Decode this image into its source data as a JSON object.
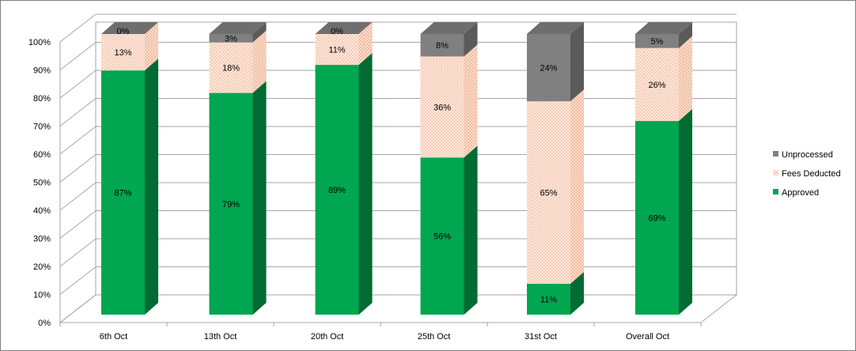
{
  "chart_data": {
    "type": "bar",
    "stacked": true,
    "three_d": true,
    "categories": [
      "6th Oct",
      "13th Oct",
      "20th Oct",
      "25th Oct",
      "31st Oct",
      "Overall Oct"
    ],
    "series": [
      {
        "name": "Approved",
        "values": [
          87,
          79,
          89,
          56,
          11,
          69
        ],
        "labels": [
          "87%",
          "79%",
          "89%",
          "56%",
          "11%",
          "69%"
        ],
        "color": "#00A650",
        "side_color": "#006B33",
        "top_color": "#00C060"
      },
      {
        "name": "Fees Deducted",
        "values": [
          13,
          18,
          11,
          36,
          65,
          26
        ],
        "labels": [
          "13%",
          "18%",
          "11%",
          "36%",
          "65%",
          "26%"
        ],
        "color": "#FCE8DC",
        "dot_color": "#F4A582",
        "side_color": "#F6CDB8",
        "top_color": "#FDF2EA"
      },
      {
        "name": "Unprocessed",
        "values": [
          0,
          3,
          0,
          8,
          24,
          5
        ],
        "labels": [
          "0%",
          "3%",
          "0%",
          "8%",
          "24%",
          "5%"
        ],
        "color": "#808080",
        "side_color": "#5A5A5A",
        "top_color": "#6E6E6E"
      }
    ],
    "yaxis": {
      "min": 0,
      "max": 100,
      "step": 10,
      "tick_labels": [
        "0%",
        "10%",
        "20%",
        "30%",
        "40%",
        "50%",
        "60%",
        "70%",
        "80%",
        "90%",
        "100%"
      ]
    },
    "grid": true,
    "legend_position": "right"
  }
}
